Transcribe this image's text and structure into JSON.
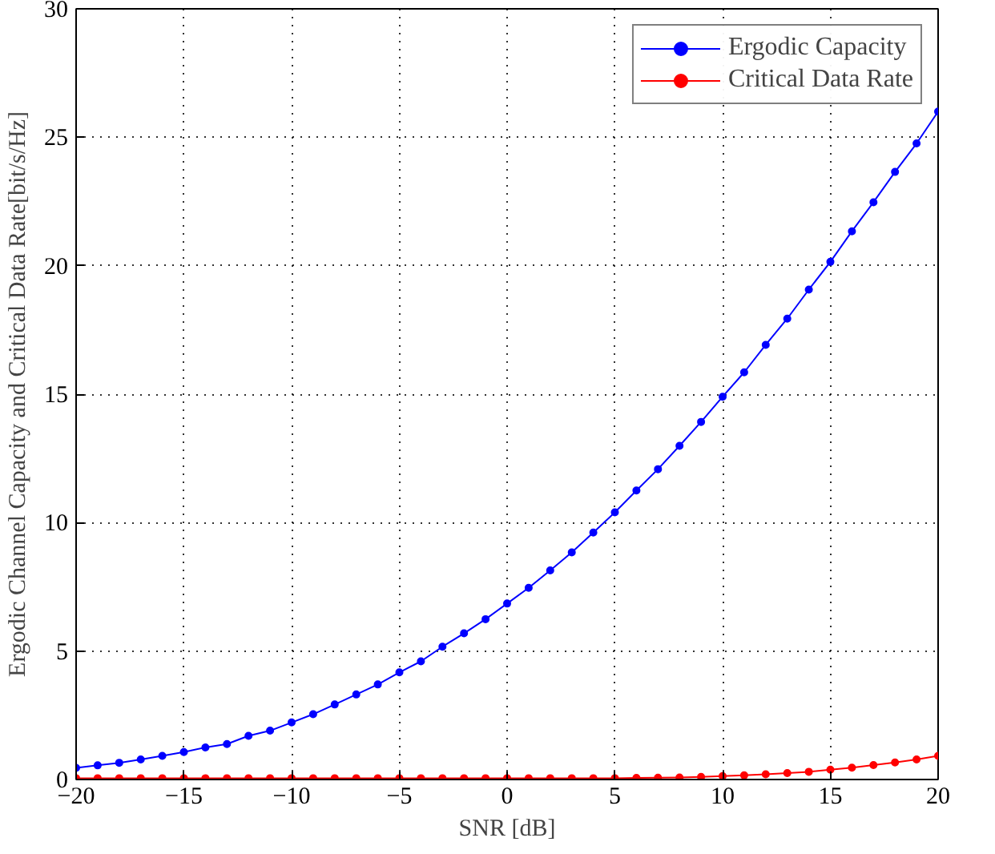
{
  "chart_data": {
    "type": "line",
    "xlabel": "SNR [dB]",
    "ylabel": "Ergodic Channel Capacity and Critical Data Rate[bit/s/Hz]",
    "x": [
      -20,
      -19,
      -18,
      -17,
      -16,
      -15,
      -14,
      -13,
      -12,
      -11,
      -10,
      -9,
      -8,
      -7,
      -6,
      -5,
      -4,
      -3,
      -2,
      -1,
      0,
      1,
      2,
      3,
      4,
      5,
      6,
      7,
      8,
      9,
      10,
      11,
      12,
      13,
      14,
      15,
      16,
      17,
      18,
      19,
      20
    ],
    "series": [
      {
        "name": "Ergodic Capacity",
        "color": "#0000ff",
        "values": [
          0.45,
          0.55,
          0.65,
          0.78,
          0.92,
          1.07,
          1.25,
          1.38,
          1.7,
          1.9,
          2.22,
          2.54,
          2.92,
          3.31,
          3.7,
          4.17,
          4.6,
          5.17,
          5.69,
          6.24,
          6.85,
          7.46,
          8.14,
          8.84,
          9.61,
          10.4,
          11.25,
          12.08,
          12.99,
          13.92,
          14.9,
          15.85,
          16.92,
          17.94,
          19.07,
          20.15,
          21.34,
          22.47,
          23.65,
          24.76,
          26.0
        ]
      },
      {
        "name": "Critical Data Rate",
        "color": "#ff0000",
        "values": [
          0.05,
          0.05,
          0.05,
          0.05,
          0.05,
          0.05,
          0.05,
          0.05,
          0.05,
          0.05,
          0.05,
          0.05,
          0.05,
          0.05,
          0.05,
          0.05,
          0.05,
          0.05,
          0.05,
          0.05,
          0.05,
          0.05,
          0.05,
          0.05,
          0.05,
          0.05,
          0.06,
          0.07,
          0.08,
          0.1,
          0.13,
          0.16,
          0.2,
          0.25,
          0.3,
          0.38,
          0.46,
          0.56,
          0.66,
          0.78,
          0.92
        ]
      }
    ],
    "xlim": [
      -20,
      20
    ],
    "ylim": [
      0,
      30
    ],
    "xticks": [
      -20,
      -15,
      -10,
      -5,
      0,
      5,
      10,
      15,
      20
    ],
    "yticks": [
      0,
      5,
      10,
      15,
      20,
      25,
      30
    ],
    "grid": true,
    "legend": "top right",
    "marker": "circle",
    "line_style": "solid"
  }
}
